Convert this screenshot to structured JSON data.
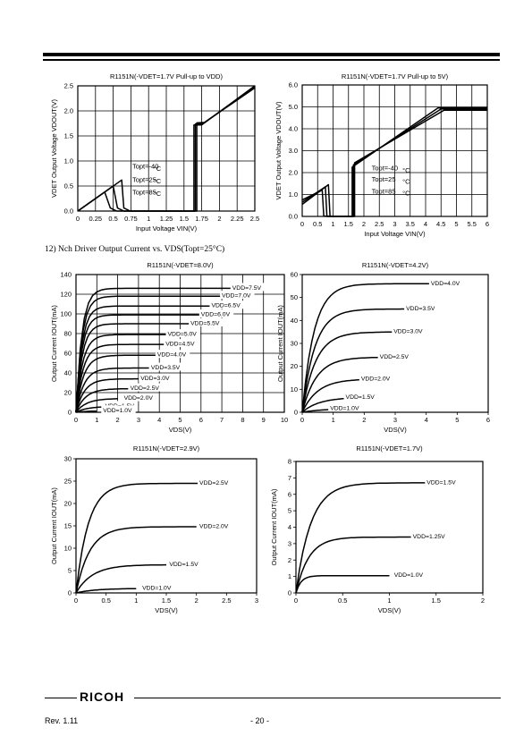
{
  "section_title": "12) Nch Driver Output Current vs. VDS(Topt=25°C)",
  "footer": {
    "logo": "RICOH",
    "revision": "Rev. 1.11",
    "page": "- 20 -"
  },
  "chart_data": [
    {
      "id": "c1",
      "type": "line",
      "title": "R1151N(-VDET=1.7V Pull-up to VDD)",
      "xlabel": "Input Voltage VIN(V)",
      "ylabel": "VDET Output Voltage VDOUT(V)",
      "xlim": [
        0,
        2.5
      ],
      "ylim": [
        0,
        2.5
      ],
      "xticks": [
        "0",
        "0.25",
        "0.5",
        "0.75",
        "1",
        "1.25",
        "1.5",
        "1.75",
        "2",
        "2.25",
        "2.5"
      ],
      "yticks": [
        "0.0",
        "0.5",
        "1.0",
        "1.5",
        "2.0",
        "2.5"
      ],
      "grid": true,
      "series": [
        {
          "values": [
            [
              0,
              0
            ],
            [
              0.38,
              0.38
            ],
            [
              0.46,
              0.06
            ],
            [
              0.55,
              0.0
            ],
            [
              1.64,
              0.0
            ],
            [
              1.64,
              1.72
            ],
            [
              1.75,
              1.72
            ],
            [
              2.5,
              2.5
            ]
          ]
        },
        {
          "values": [
            [
              0,
              0
            ],
            [
              0.5,
              0.5
            ],
            [
              0.56,
              0.06
            ],
            [
              0.65,
              0.0
            ],
            [
              1.66,
              0.0
            ],
            [
              1.66,
              1.74
            ],
            [
              1.77,
              1.75
            ],
            [
              2.5,
              2.48
            ]
          ]
        },
        {
          "values": [
            [
              0,
              0
            ],
            [
              0.62,
              0.62
            ],
            [
              0.65,
              0.06
            ],
            [
              0.74,
              0.0
            ],
            [
              1.68,
              0.0
            ],
            [
              1.68,
              1.76
            ],
            [
              1.79,
              1.77
            ],
            [
              2.5,
              2.46
            ]
          ]
        }
      ],
      "annotations": [
        {
          "text": "Topt=-40",
          "x": 0.77,
          "y": 0.85
        },
        {
          "text": "Topt=25",
          "x": 0.77,
          "y": 0.58
        },
        {
          "text": "Topt=85",
          "x": 0.77,
          "y": 0.33
        },
        {
          "text": "°C",
          "x": 1.07,
          "y": 0.8
        },
        {
          "text": "°C",
          "x": 1.07,
          "y": 0.55
        },
        {
          "text": "°C",
          "x": 1.07,
          "y": 0.3
        }
      ]
    },
    {
      "id": "c2",
      "type": "line",
      "title": "R1151N(-VDET=1.7V Pull-up to 5V)",
      "xlabel": "Input Voltage VIN(V)",
      "ylabel": "VDET Output Voltage VDOUT(V)",
      "xlim": [
        0,
        6
      ],
      "ylim": [
        0,
        6
      ],
      "xticks": [
        "0",
        "0.5",
        "1",
        "1.5",
        "2",
        "2.5",
        "3",
        "3.5",
        "4",
        "4.5",
        "5",
        "5.5",
        "6"
      ],
      "yticks": [
        "0.0",
        "1.0",
        "2.0",
        "3.0",
        "4.0",
        "5.0",
        "6.0"
      ],
      "grid": true,
      "series": [
        {
          "values": [
            [
              0,
              0.55
            ],
            [
              0.85,
              1.45
            ],
            [
              0.9,
              0.02
            ],
            [
              1.0,
              0.0
            ],
            [
              1.62,
              0.0
            ],
            [
              1.62,
              2.25
            ],
            [
              4.4,
              4.95
            ],
            [
              6,
              4.95
            ]
          ]
        },
        {
          "values": [
            [
              0,
              0.65
            ],
            [
              0.75,
              1.35
            ],
            [
              0.8,
              0.02
            ],
            [
              0.9,
              0.0
            ],
            [
              1.66,
              0.0
            ],
            [
              1.66,
              2.35
            ],
            [
              4.5,
              4.9
            ],
            [
              6,
              4.9
            ]
          ]
        },
        {
          "values": [
            [
              0,
              0.75
            ],
            [
              0.65,
              1.2
            ],
            [
              0.7,
              0.02
            ],
            [
              0.8,
              0.0
            ],
            [
              1.7,
              0.0
            ],
            [
              1.7,
              2.45
            ],
            [
              4.6,
              4.85
            ],
            [
              6,
              4.85
            ]
          ]
        }
      ],
      "annotations": [
        {
          "text": "Topt=-40",
          "x": 2.25,
          "y": 2.1
        },
        {
          "text": "Topt=25",
          "x": 2.25,
          "y": 1.6
        },
        {
          "text": "Topt=85",
          "x": 2.25,
          "y": 1.05
        },
        {
          "text": "°C",
          "x": 3.25,
          "y": 2.0
        },
        {
          "text": "°C",
          "x": 3.25,
          "y": 1.5
        },
        {
          "text": "°C",
          "x": 3.25,
          "y": 0.95
        }
      ]
    },
    {
      "id": "c3",
      "type": "line",
      "title": "R1151N(-VDET=8.0V)",
      "xlabel": "VDS(V)",
      "ylabel": "Output Current IOUT(mA)",
      "xlim": [
        0,
        10
      ],
      "ylim": [
        0,
        140
      ],
      "xticks": [
        "0",
        "1",
        "2",
        "3",
        "4",
        "5",
        "6",
        "7",
        "8",
        "9",
        "10"
      ],
      "yticks": [
        "0",
        "20",
        "40",
        "60",
        "80",
        "100",
        "120",
        "140"
      ],
      "grid": true,
      "series": [
        {
          "name": "VDD=7.5V",
          "sat": 126,
          "end": 8.0,
          "k": 0.62,
          "label_x": 7.5
        },
        {
          "name": "VDD=7.0V",
          "sat": 118,
          "end": 7.0,
          "k": 0.62,
          "label_x": 7.0
        },
        {
          "name": "VDD=6.5V",
          "sat": 108,
          "end": 6.5,
          "k": 0.62,
          "label_x": 6.5
        },
        {
          "name": "VDD=6.0V",
          "sat": 99,
          "end": 6.0,
          "k": 0.62,
          "label_x": 6.0
        },
        {
          "name": "VDD=5.5V",
          "sat": 90,
          "end": 5.5,
          "k": 0.65,
          "label_x": 5.5
        },
        {
          "name": "VDD=5.0V",
          "sat": 79,
          "end": 5.0,
          "k": 0.7,
          "label_x": 4.4
        },
        {
          "name": "VDD=4.5V",
          "sat": 69,
          "end": 4.5,
          "k": 0.75,
          "label_x": 4.3
        },
        {
          "name": "VDD=4.0V",
          "sat": 58,
          "end": 4.0,
          "k": 0.8,
          "label_x": 3.9
        },
        {
          "name": "VDD=3.5V",
          "sat": 45,
          "end": 3.5,
          "k": 0.85,
          "label_x": 3.6
        },
        {
          "name": "VDD=3.0V",
          "sat": 34,
          "end": 3.0,
          "k": 0.9,
          "label_x": 3.1
        },
        {
          "name": "VDD=2.5V",
          "sat": 24,
          "end": 2.5,
          "k": 1.0,
          "label_x": 2.6
        },
        {
          "name": "VDD=2.0V",
          "sat": 14,
          "end": 2.0,
          "k": 1.1,
          "label_x": 2.3
        },
        {
          "name": "VDD=1.5V",
          "sat": 6,
          "end": 1.5,
          "k": 1.2,
          "label_x": 1.4
        },
        {
          "name": "VDD=1.0V",
          "sat": 1.5,
          "end": 1.0,
          "k": 1.3,
          "label_x": 1.3
        }
      ]
    },
    {
      "id": "c4",
      "type": "line",
      "title": "R1151N(-VDET=4.2V)",
      "xlabel": "VDS(V)",
      "ylabel": "Output Current IOUT(mA)",
      "xlim": [
        0,
        6
      ],
      "ylim": [
        0,
        60
      ],
      "xticks": [
        "0",
        "1",
        "2",
        "3",
        "4",
        "5",
        "6"
      ],
      "yticks": [
        "0",
        "10",
        "20",
        "30",
        "40",
        "50",
        "60"
      ],
      "grid": false,
      "series": [
        {
          "name": "VDD=4.0V",
          "sat": 56,
          "end": 4.1,
          "k": 0.85,
          "label_x": 4.15
        },
        {
          "name": "VDD=3.5V",
          "sat": 45,
          "end": 3.3,
          "k": 0.9,
          "label_x": 3.35
        },
        {
          "name": "VDD=3.0V",
          "sat": 35,
          "end": 3.0,
          "k": 0.95,
          "label_x": 2.95
        },
        {
          "name": "VDD=2.5V",
          "sat": 24,
          "end": 2.5,
          "k": 1.0,
          "label_x": 2.5
        },
        {
          "name": "VDD=2.0V",
          "sat": 14.5,
          "end": 2.0,
          "k": 1.1,
          "label_x": 1.9
        },
        {
          "name": "VDD=1.5V",
          "sat": 6.5,
          "end": 1.6,
          "k": 1.2,
          "label_x": 1.4
        },
        {
          "name": "VDD=1.0V",
          "sat": 1.5,
          "end": 1.1,
          "k": 1.3,
          "label_x": 0.9
        }
      ]
    },
    {
      "id": "c5",
      "type": "line",
      "title": "R1151N(-VDET=2.9V)",
      "xlabel": "VDS(V)",
      "ylabel": "Output Current IOUT(mA)",
      "xlim": [
        0,
        3
      ],
      "ylim": [
        0,
        30
      ],
      "xticks": [
        "0",
        "0.5",
        "1",
        "1.5",
        "2",
        "2.5",
        "3"
      ],
      "yticks": [
        "0",
        "5",
        "10",
        "15",
        "20",
        "25",
        "30"
      ],
      "grid": false,
      "series": [
        {
          "name": "VDD=2.5V",
          "sat": 24.5,
          "end": 2.05,
          "k": 0.45,
          "label_x": 2.05
        },
        {
          "name": "VDD=2.0V",
          "sat": 14.8,
          "end": 2.0,
          "k": 0.5,
          "label_x": 2.05
        },
        {
          "name": "VDD=1.5V",
          "sat": 6.3,
          "end": 1.5,
          "k": 0.6,
          "label_x": 1.55
        },
        {
          "name": "VDD=1.0V",
          "sat": 1.0,
          "end": 1.0,
          "k": 0.7,
          "label_x": 1.1
        }
      ]
    },
    {
      "id": "c6",
      "type": "line",
      "title": "R1151N(-VDET=1.7V)",
      "xlabel": "VDS(V)",
      "ylabel": "Output Current IOUT(mA)",
      "xlim": [
        0,
        2
      ],
      "ylim": [
        0,
        8
      ],
      "xticks": [
        "0",
        "0.5",
        "1",
        "1.5",
        "2"
      ],
      "yticks": [
        "0",
        "1",
        "2",
        "3",
        "4",
        "5",
        "6",
        "7",
        "8"
      ],
      "grid": false,
      "series": [
        {
          "name": "VDD=1.5V",
          "sat": 6.7,
          "end": 1.5,
          "k": 0.35,
          "label_x": 1.4
        },
        {
          "name": "VDD=1.25V",
          "sat": 3.4,
          "end": 1.25,
          "k": 0.3,
          "label_x": 1.25
        },
        {
          "name": "VDD=1.0V",
          "sat": 1.05,
          "end": 1.0,
          "k": 0.12,
          "label_x": 1.05
        }
      ]
    }
  ]
}
